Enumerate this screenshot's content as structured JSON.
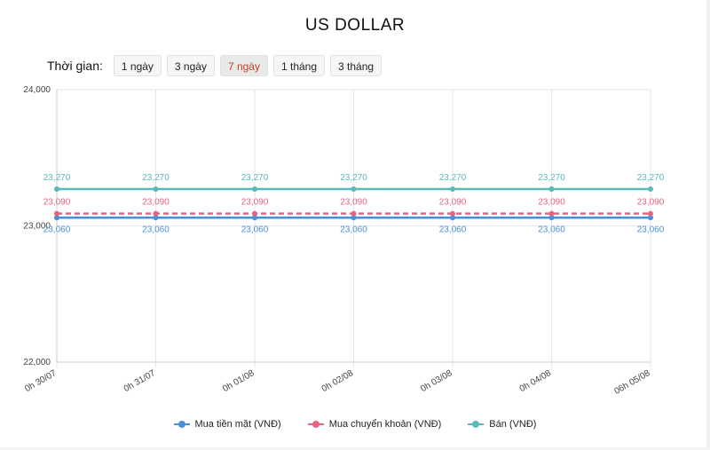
{
  "title": "US DOLLAR",
  "period": {
    "label": "Thời gian:",
    "options": [
      "1 ngày",
      "3 ngày",
      "7 ngày",
      "1 tháng",
      "3 tháng"
    ],
    "selected": "7 ngày"
  },
  "colors": {
    "buy_cash": "#4a90d9",
    "buy_transfer": "#e8637e",
    "sell": "#5bb8b8",
    "active_period": "#c6421f",
    "grid": "#e6e6e6"
  },
  "chart_data": {
    "type": "line",
    "x": [
      "0h 30/07",
      "0h 31/07",
      "0h 01/08",
      "0h 02/08",
      "0h 03/08",
      "0h 04/08",
      "06h 05/08"
    ],
    "ylim": [
      22000,
      24000
    ],
    "yticks": [
      "22,000",
      "23,000",
      "24,000"
    ],
    "grid": true,
    "legend_position": "bottom",
    "series": [
      {
        "name": "Mua tiền mặt (VNĐ)",
        "values": [
          23060,
          23060,
          23060,
          23060,
          23060,
          23060,
          23060
        ],
        "labels": [
          "23,060",
          "23,060",
          "23,060",
          "23,060",
          "23,060",
          "23,060",
          "23,060"
        ],
        "color": "#4a90d9",
        "dashed": false
      },
      {
        "name": "Mua chuyển khoản (VNĐ)",
        "values": [
          23090,
          23090,
          23090,
          23090,
          23090,
          23090,
          23090
        ],
        "labels": [
          "23,090",
          "23,090",
          "23,090",
          "23,090",
          "23,090",
          "23,090",
          "23,090"
        ],
        "color": "#e8637e",
        "dashed": true
      },
      {
        "name": "Bán (VNĐ)",
        "values": [
          23270,
          23270,
          23270,
          23270,
          23270,
          23270,
          23270
        ],
        "labels": [
          "23,270",
          "23,270",
          "23,270",
          "23,270",
          "23,270",
          "23,270",
          "23,270"
        ],
        "color": "#5bb8b8",
        "dashed": false
      }
    ]
  }
}
